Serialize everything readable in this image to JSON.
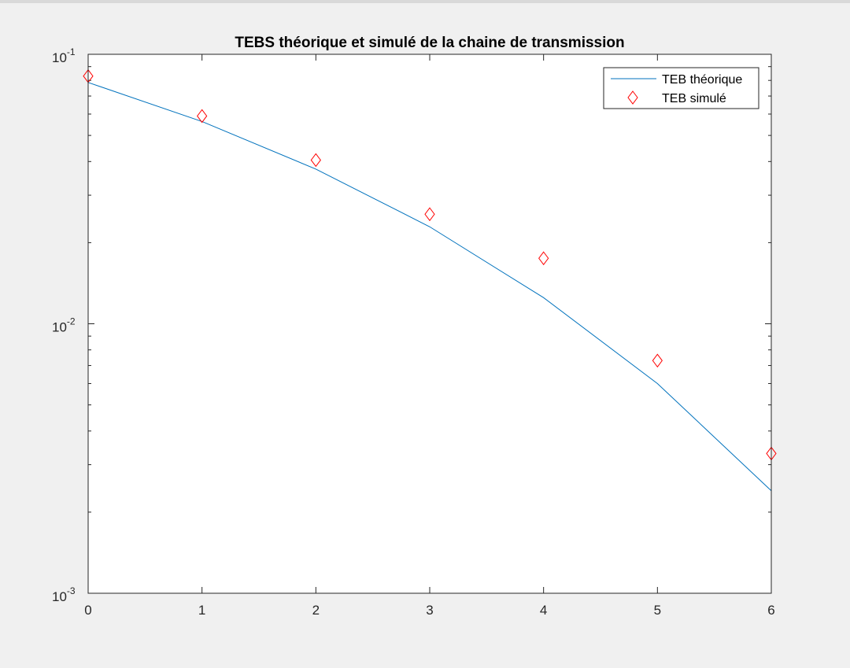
{
  "chart_data": {
    "type": "line",
    "title": "TEBS théorique et simulé de la chaine de transmission",
    "xlabel": "",
    "ylabel": "",
    "xlim": [
      0,
      6
    ],
    "ylim": [
      0.001,
      0.1
    ],
    "yscale": "log",
    "grid": false,
    "legend_position": "top-right",
    "x_ticks": [
      "0",
      "1",
      "2",
      "3",
      "4",
      "5",
      "6"
    ],
    "y_ticks": [
      {
        "base": "10",
        "exp": "-3"
      },
      {
        "base": "10",
        "exp": "-2"
      },
      {
        "base": "10",
        "exp": "-1"
      }
    ],
    "series": [
      {
        "name": "TEB théorique",
        "style": "line",
        "color": "#0072bd",
        "x": [
          0,
          1,
          2,
          3,
          4,
          5,
          6
        ],
        "y": [
          0.0786,
          0.0563,
          0.0375,
          0.0229,
          0.0125,
          0.006,
          0.0024
        ]
      },
      {
        "name": "TEB simulé",
        "style": "marker",
        "marker": "diamond",
        "color": "#ff0000",
        "x": [
          0,
          1,
          2,
          3,
          4,
          5,
          6
        ],
        "y": [
          0.083,
          0.059,
          0.0405,
          0.0255,
          0.0175,
          0.0073,
          0.0033
        ]
      }
    ]
  }
}
